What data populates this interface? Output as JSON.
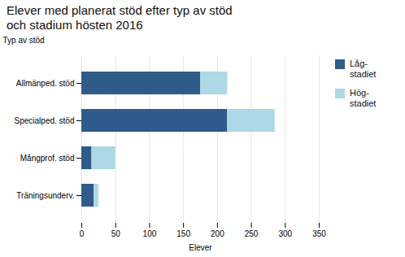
{
  "chart_data": {
    "type": "bar",
    "orientation": "horizontal",
    "stacked": true,
    "title": "Elever med planerat stöd efter typ av stöd",
    "subtitle": "och stadium hösten 2016",
    "ylabel": "Typ av stöd",
    "xlabel": "Elever",
    "categories": [
      "Allmänped. stöd",
      "Specialped. stöd",
      "Mångprof. stöd",
      "Träningsunderv."
    ],
    "series": [
      {
        "name": "Låg-\nstadiet",
        "color": "#2E5B8A",
        "values": [
          175,
          215,
          15,
          18
        ]
      },
      {
        "name": "Hög-\nstadiet",
        "color": "#ADD8E6",
        "values": [
          40,
          70,
          35,
          7
        ]
      }
    ],
    "xlim": [
      0,
      350
    ],
    "xticks": [
      0,
      50,
      100,
      150,
      200,
      250,
      300,
      350
    ],
    "grid": true,
    "legend": "right"
  }
}
